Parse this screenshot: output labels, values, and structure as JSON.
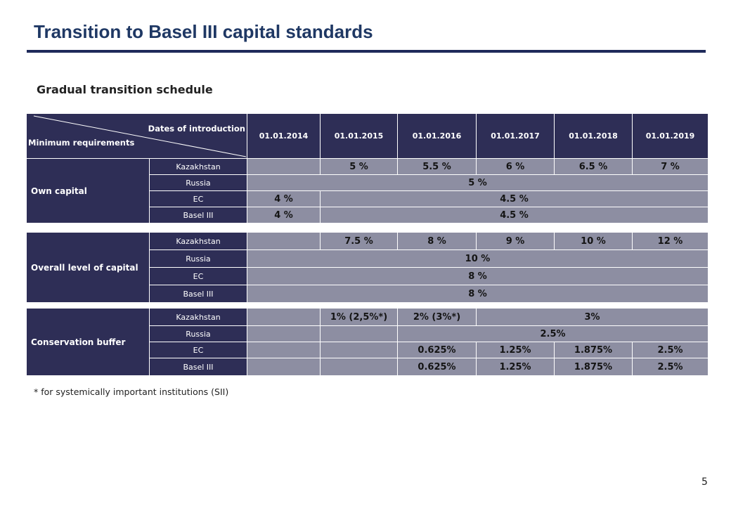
{
  "title": "Transition to Basel III capital standards",
  "subtitle": "Gradual transition schedule",
  "footnote": "* for systemically important institutions (SII)",
  "page_number": "5",
  "header": {
    "dates_label": "Dates of introduction",
    "requirements_label": "Minimum requirements",
    "dates": [
      "01.01.2014",
      "01.01.2015",
      "01.01.2016",
      "01.01.2017",
      "01.01.2018",
      "01.01.2019"
    ]
  },
  "own_capital": {
    "label": "Own capital",
    "rows": [
      {
        "country": "Kazakhstan",
        "values": [
          "",
          "5 %",
          "5.5 %",
          "6 %",
          "6.5 %",
          "7 %"
        ]
      },
      {
        "country": "Russia",
        "value": "5 %"
      },
      {
        "country": "EC",
        "first": "4 %",
        "rest": "4.5 %"
      },
      {
        "country": "Basel III",
        "first": "4 %",
        "rest": "4.5 %"
      }
    ]
  },
  "overall_capital": {
    "label": "Overall level of capital",
    "rows": [
      {
        "country": "Kazakhstan",
        "values": [
          "",
          "7.5 %",
          "8 %",
          "9 %",
          "10 %",
          "12 %"
        ]
      },
      {
        "country": "Russia",
        "value": "10 %"
      },
      {
        "country": "EC",
        "value": "8 %"
      },
      {
        "country": "Basel III",
        "value": "8 %"
      }
    ]
  },
  "conservation_buffer": {
    "label": "Conservation buffer",
    "rows": [
      {
        "country": "Kazakhstan",
        "values": [
          "",
          "1% (2,5%*)",
          "2% (3%*)"
        ],
        "rest": "3%"
      },
      {
        "country": "Russia",
        "empty": [
          "",
          ""
        ],
        "rest": "2.5%"
      },
      {
        "country": "EC",
        "values": [
          "",
          "",
          "0.625%",
          "1.25%",
          "1.875%",
          "2.5%"
        ]
      },
      {
        "country": "Basel III",
        "values": [
          "",
          "",
          "0.625%",
          "1.25%",
          "1.875%",
          "2.5%"
        ]
      }
    ]
  },
  "colors": {
    "header_bg": "#2e2e56",
    "cell_bg": "#8d8ea2",
    "title": "#1f3864"
  }
}
